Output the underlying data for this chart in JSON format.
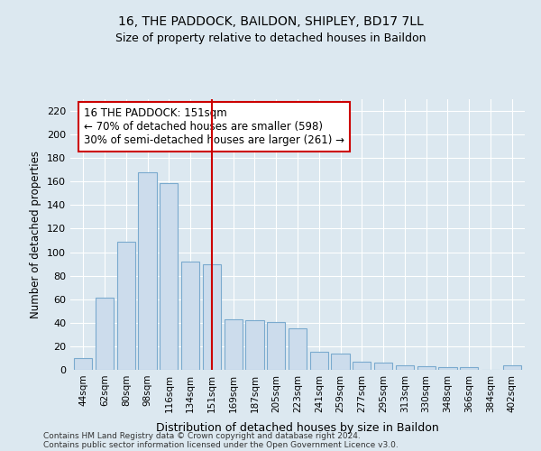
{
  "title1": "16, THE PADDOCK, BAILDON, SHIPLEY, BD17 7LL",
  "title2": "Size of property relative to detached houses in Baildon",
  "xlabel": "Distribution of detached houses by size in Baildon",
  "ylabel": "Number of detached properties",
  "footer1": "Contains HM Land Registry data © Crown copyright and database right 2024.",
  "footer2": "Contains public sector information licensed under the Open Government Licence v3.0.",
  "categories": [
    "44sqm",
    "62sqm",
    "80sqm",
    "98sqm",
    "116sqm",
    "134sqm",
    "151sqm",
    "169sqm",
    "187sqm",
    "205sqm",
    "223sqm",
    "241sqm",
    "259sqm",
    "277sqm",
    "295sqm",
    "313sqm",
    "330sqm",
    "348sqm",
    "366sqm",
    "384sqm",
    "402sqm"
  ],
  "values": [
    10,
    61,
    109,
    168,
    159,
    92,
    90,
    43,
    42,
    41,
    35,
    15,
    14,
    7,
    6,
    4,
    3,
    2,
    2,
    0,
    4
  ],
  "bar_color": "#ccdcec",
  "bar_edge_color": "#7aaace",
  "vline_x": 6,
  "vline_color": "#cc0000",
  "annotation_text": "16 THE PADDOCK: 151sqm\n← 70% of detached houses are smaller (598)\n30% of semi-detached houses are larger (261) →",
  "annotation_box_color": "#ffffff",
  "annotation_box_edge": "#cc0000",
  "ylim": [
    0,
    230
  ],
  "yticks": [
    0,
    20,
    40,
    60,
    80,
    100,
    120,
    140,
    160,
    180,
    200,
    220
  ],
  "bg_color": "#dce8f0",
  "plot_bg_color": "#dce8f0"
}
